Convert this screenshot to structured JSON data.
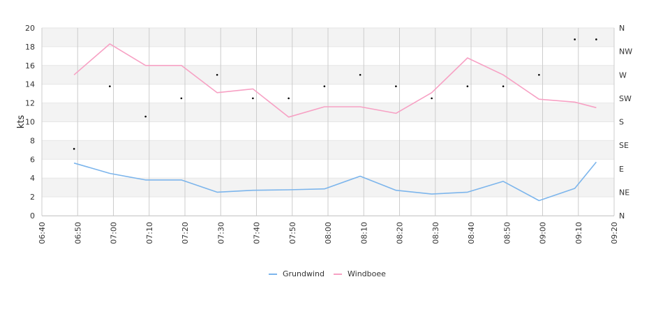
{
  "chart_data": {
    "type": "line",
    "ylabel": "kts",
    "ylim": [
      0,
      20
    ],
    "yticks": [
      "0",
      "2",
      "4",
      "6",
      "8",
      "10",
      "12",
      "14",
      "16",
      "18",
      "20"
    ],
    "xlim": [
      "06:40",
      "09:20"
    ],
    "xticks": [
      "06:40",
      "06:50",
      "07:00",
      "07:10",
      "07:20",
      "07:30",
      "07:40",
      "07:50",
      "08:00",
      "08:10",
      "08:20",
      "08:30",
      "08:40",
      "08:50",
      "09:00",
      "09:10",
      "09:20"
    ],
    "y2_ticks": [
      "N",
      "NE",
      "E",
      "SE",
      "S",
      "SW",
      "W",
      "NW",
      "N"
    ],
    "y2lim": [
      0,
      360
    ],
    "x": [
      "06:49",
      "06:59",
      "07:09",
      "07:19",
      "07:29",
      "07:39",
      "07:49",
      "07:59",
      "08:09",
      "08:19",
      "08:29",
      "08:39",
      "08:49",
      "08:59",
      "09:09",
      "09:15"
    ],
    "series": [
      {
        "name": "Grundwind",
        "color": "#7cb5ec",
        "values": [
          5.6,
          4.5,
          3.8,
          3.8,
          2.5,
          2.7,
          2.75,
          2.85,
          4.2,
          2.7,
          2.3,
          2.5,
          3.65,
          1.6,
          2.9,
          5.7
        ]
      },
      {
        "name": "Windboee",
        "color": "#f7a1c4",
        "values": [
          15.0,
          18.3,
          16.0,
          16.0,
          13.1,
          13.5,
          10.5,
          11.6,
          11.6,
          10.9,
          13.1,
          16.8,
          15.0,
          12.4,
          12.1,
          11.5
        ]
      }
    ],
    "direction_deg": [
      128,
      248,
      190,
      225,
      270,
      225,
      225,
      248,
      270,
      248,
      225,
      248,
      248,
      270,
      338,
      338
    ],
    "direction_color": "#000000",
    "grid": true,
    "legend": "bottom-center"
  }
}
